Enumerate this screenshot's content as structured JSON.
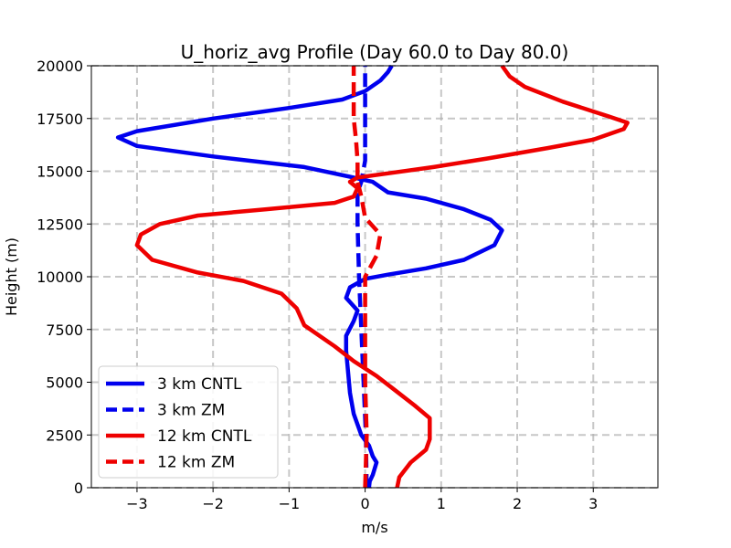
{
  "chart_data": {
    "type": "line",
    "title": "U_horiz_avg Profile (Day 60.0 to Day 80.0)",
    "xlabel": "m/s",
    "ylabel": "Height (m)",
    "xlim": [
      -3.6,
      3.85
    ],
    "ylim": [
      0,
      20000
    ],
    "x_ticks": [
      -3,
      -2,
      -1,
      0,
      1,
      2,
      3
    ],
    "y_ticks": [
      0,
      2500,
      5000,
      7500,
      10000,
      12500,
      15000,
      17500,
      20000
    ],
    "x_tick_labels": [
      "−3",
      "−2",
      "−1",
      "0",
      "1",
      "2",
      "3"
    ],
    "y_tick_labels": [
      "0",
      "2500",
      "5000",
      "7500",
      "10000",
      "12500",
      "15000",
      "17500",
      "20000"
    ],
    "grid": true,
    "legend_position": "lower-left",
    "series": [
      {
        "name": "3 km CNTL",
        "color": "#0000ee",
        "style": "solid",
        "points": [
          [
            0.05,
            0
          ],
          [
            0.06,
            300
          ],
          [
            0.1,
            600
          ],
          [
            0.15,
            1200
          ],
          [
            0.1,
            1500
          ],
          [
            0.05,
            2000
          ],
          [
            -0.05,
            2500
          ],
          [
            -0.15,
            3500
          ],
          [
            -0.2,
            4500
          ],
          [
            -0.25,
            6500
          ],
          [
            -0.25,
            7200
          ],
          [
            -0.15,
            7900
          ],
          [
            -0.1,
            8400
          ],
          [
            -0.25,
            9000
          ],
          [
            -0.2,
            9500
          ],
          [
            0,
            9900
          ],
          [
            0.3,
            10100
          ],
          [
            0.8,
            10400
          ],
          [
            1.3,
            10800
          ],
          [
            1.7,
            11500
          ],
          [
            1.8,
            12200
          ],
          [
            1.65,
            12700
          ],
          [
            1.3,
            13200
          ],
          [
            0.8,
            13700
          ],
          [
            0.3,
            14000
          ],
          [
            0.1,
            14500
          ],
          [
            -0.15,
            14700
          ],
          [
            -0.8,
            15200
          ],
          [
            -2.0,
            15700
          ],
          [
            -3.0,
            16200
          ],
          [
            -3.25,
            16600
          ],
          [
            -3.0,
            16900
          ],
          [
            -2.0,
            17500
          ],
          [
            -1.0,
            18000
          ],
          [
            -0.3,
            18400
          ],
          [
            0,
            18800
          ],
          [
            0.2,
            19300
          ],
          [
            0.3,
            19700
          ],
          [
            0.35,
            20000
          ]
        ]
      },
      {
        "name": "3 km ZM",
        "color": "#0000ee",
        "style": "dashed",
        "points": [
          [
            0.02,
            0
          ],
          [
            0.01,
            2500
          ],
          [
            -0.02,
            5000
          ],
          [
            -0.05,
            7500
          ],
          [
            -0.08,
            10000
          ],
          [
            -0.1,
            12500
          ],
          [
            -0.1,
            14000
          ],
          [
            -0.05,
            14500
          ],
          [
            0.0,
            15500
          ],
          [
            0.0,
            17000
          ],
          [
            0.0,
            19000
          ],
          [
            0.0,
            20000
          ]
        ]
      },
      {
        "name": "12 km CNTL",
        "color": "#ee0000",
        "style": "solid",
        "points": [
          [
            0.42,
            0
          ],
          [
            0.45,
            500
          ],
          [
            0.6,
            1200
          ],
          [
            0.8,
            1800
          ],
          [
            0.85,
            2300
          ],
          [
            0.85,
            3300
          ],
          [
            0.65,
            3900
          ],
          [
            0.4,
            4600
          ],
          [
            0.15,
            5300
          ],
          [
            -0.15,
            6000
          ],
          [
            -0.4,
            6700
          ],
          [
            -0.8,
            7700
          ],
          [
            -0.9,
            8500
          ],
          [
            -1.1,
            9200
          ],
          [
            -1.6,
            9800
          ],
          [
            -2.2,
            10200
          ],
          [
            -2.8,
            10800
          ],
          [
            -3.0,
            11500
          ],
          [
            -2.95,
            12000
          ],
          [
            -2.7,
            12500
          ],
          [
            -2.2,
            12900
          ],
          [
            -1.3,
            13200
          ],
          [
            -0.4,
            13500
          ],
          [
            -0.15,
            13800
          ],
          [
            -0.1,
            14200
          ],
          [
            -0.2,
            14500
          ],
          [
            -0.1,
            14700
          ],
          [
            0.3,
            14900
          ],
          [
            0.9,
            15200
          ],
          [
            1.6,
            15600
          ],
          [
            2.4,
            16100
          ],
          [
            3.0,
            16500
          ],
          [
            3.4,
            17000
          ],
          [
            3.45,
            17300
          ],
          [
            3.2,
            17600
          ],
          [
            2.6,
            18300
          ],
          [
            2.1,
            19000
          ],
          [
            1.9,
            19500
          ],
          [
            1.8,
            20000
          ]
        ]
      },
      {
        "name": "12 km ZM",
        "color": "#ee0000",
        "style": "dashed",
        "points": [
          [
            0.0,
            0
          ],
          [
            0.02,
            2500
          ],
          [
            0.0,
            5000
          ],
          [
            0.0,
            7500
          ],
          [
            0.0,
            10000
          ],
          [
            0.15,
            11000
          ],
          [
            0.2,
            12000
          ],
          [
            0.0,
            12800
          ],
          [
            -0.05,
            13800
          ],
          [
            -0.1,
            14500
          ],
          [
            -0.1,
            15500
          ],
          [
            -0.12,
            16500
          ],
          [
            -0.15,
            17500
          ],
          [
            -0.15,
            19000
          ],
          [
            -0.15,
            20000
          ]
        ]
      }
    ]
  }
}
